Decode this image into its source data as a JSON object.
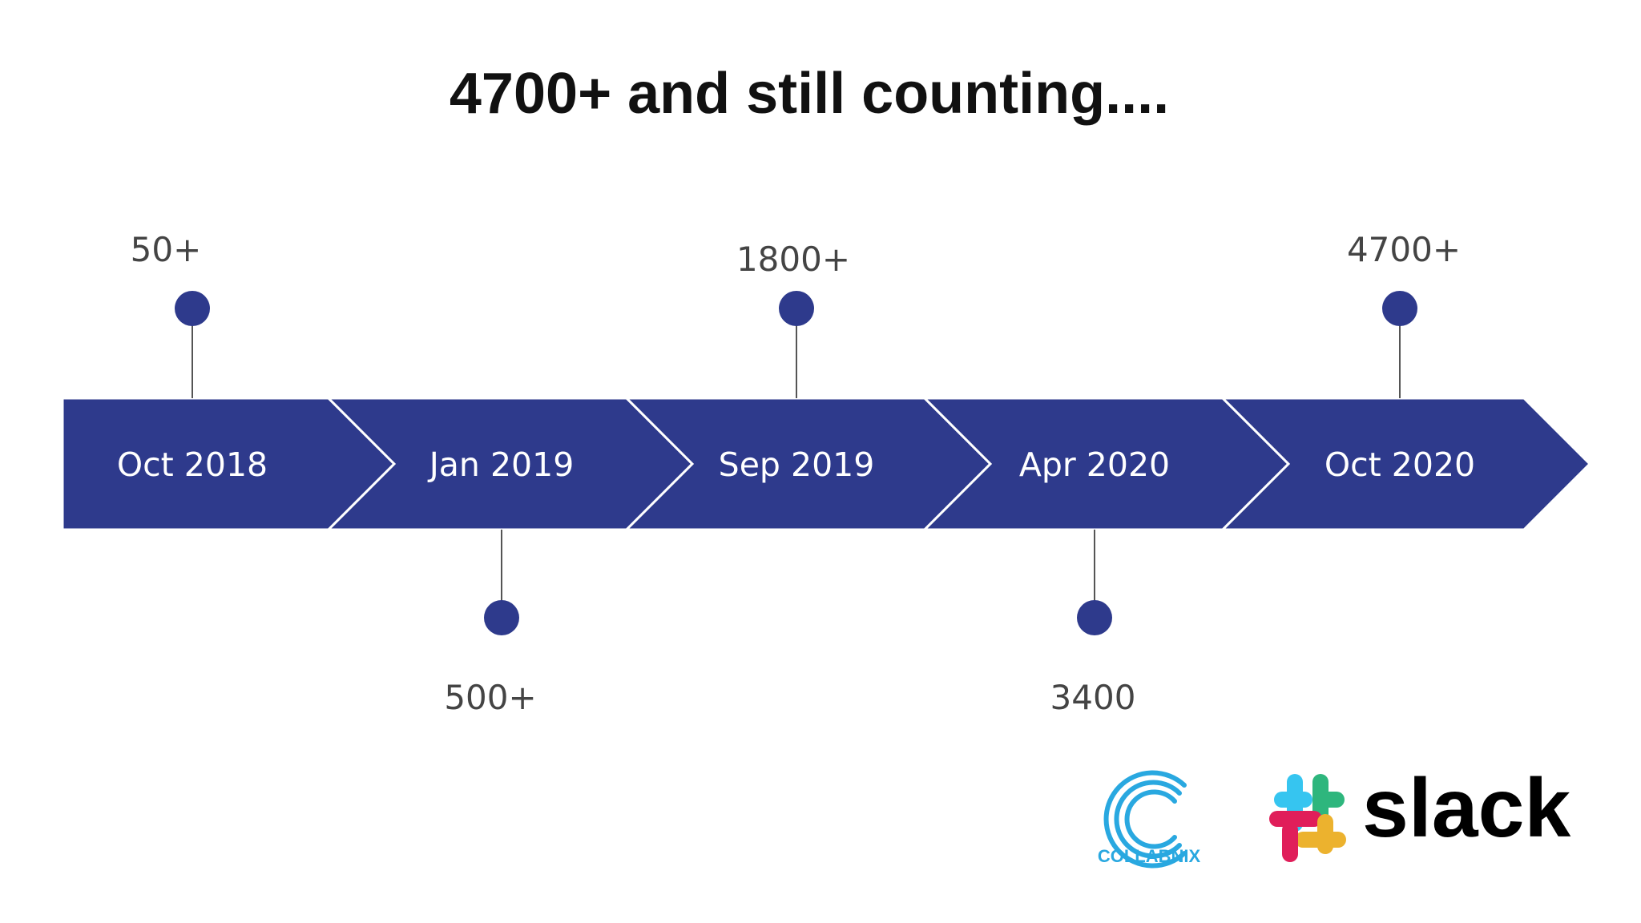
{
  "title": "4700+ and still counting....",
  "colors": {
    "arrow_fill": "#2e3a8c",
    "marker_fill": "#2e3a8c",
    "connector": "#555555",
    "count_text": "#444444",
    "title_text": "#111111"
  },
  "milestones": [
    {
      "date": "Oct 2018",
      "count": "50+",
      "position": "above"
    },
    {
      "date": "Jan 2019",
      "count": "500+",
      "position": "below"
    },
    {
      "date": "Sep 2019",
      "count": "1800+",
      "position": "above"
    },
    {
      "date": "Apr 2020",
      "count": "3400",
      "position": "below"
    },
    {
      "date": "Oct 2020",
      "count": "4700+",
      "position": "above"
    }
  ],
  "logos": {
    "collabnix": {
      "name": "COLLABNIX",
      "icon": "collabnix-c-icon",
      "color": "#29a8e0"
    },
    "slack": {
      "name": "slack",
      "icon": "slack-hash-icon",
      "color": "#000000"
    }
  }
}
